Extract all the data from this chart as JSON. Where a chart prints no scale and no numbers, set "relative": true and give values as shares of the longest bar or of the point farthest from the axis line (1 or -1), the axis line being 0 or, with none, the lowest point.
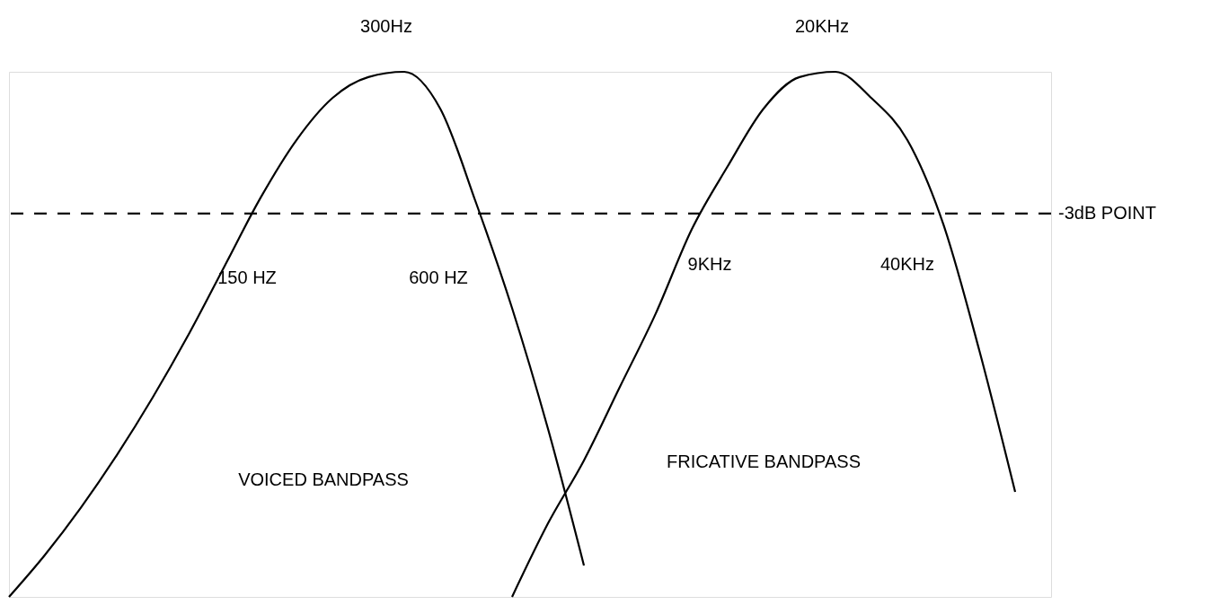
{
  "chart_data": {
    "type": "line",
    "relative": true,
    "categories": [
      null,
      null,
      null,
      null,
      null,
      null,
      null,
      null,
      null,
      null,
      null,
      null,
      null,
      null,
      null,
      null,
      null,
      null,
      null,
      null,
      null,
      null,
      null,
      null,
      null,
      null,
      null,
      null,
      null,
      null
    ],
    "series": [
      {
        "color": "#000000",
        "values": [
          0,
          0.08,
          0.17,
          0.27,
          0.38,
          0.5,
          0.63,
          0.76,
          0.87,
          0.95,
          0.99,
          1.0,
          0.93,
          0.75,
          0.55,
          0.32,
          0.06,
          null,
          null,
          null,
          null,
          null,
          null,
          null,
          null,
          null,
          null,
          null,
          null,
          null
        ]
      },
      {
        "color": "#000000",
        "values": [
          null,
          null,
          null,
          null,
          null,
          null,
          null,
          null,
          null,
          null,
          null,
          null,
          null,
          null,
          0.0,
          0.14,
          0.26,
          0.4,
          0.54,
          0.7,
          0.82,
          0.93,
          0.99,
          1.0,
          0.95,
          0.87,
          0.71,
          0.47,
          0.2,
          null
        ]
      }
    ],
    "ref_lines": [
      {
        "axis": "y",
        "value": 0.73,
        "label": "-3dB POINT",
        "color": "#000000",
        "line_style": "dashed"
      }
    ],
    "annotations": [
      "300Hz",
      "20KHz",
      "150 HZ",
      "600 HZ",
      "9KHz",
      "40KHz",
      "VOICED BANDPASS",
      "FRICATIVE BANDPASS"
    ],
    "line_style": "solid",
    "marker": "none"
  }
}
